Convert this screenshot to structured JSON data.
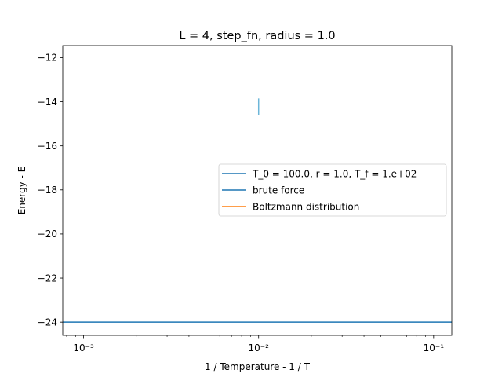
{
  "chart_data": {
    "type": "line",
    "title": "L = 4, step_fn, radius = 1.0",
    "xlabel": "1 / Temperature - 1 / T",
    "ylabel": "Energy - E",
    "xscale": "log",
    "xlim": [
      0.00076,
      0.127
    ],
    "ylim": [
      -24.6,
      -11.45
    ],
    "yticks": [
      -12,
      -14,
      -16,
      -18,
      -20,
      -22,
      -24
    ],
    "ytick_labels": [
      "−12",
      "−14",
      "−16",
      "−18",
      "−20",
      "−22",
      "−24"
    ],
    "xticks": [
      0.001,
      0.01,
      0.1
    ],
    "xtick_labels": [
      "10⁻³",
      "10⁻²",
      "10⁻¹"
    ],
    "grid": false,
    "legend_position": "center-right",
    "series": [
      {
        "name": "T_0 = 100.0, r = 1.0, T_f = 1.e+02",
        "color": "#1f77b4",
        "kind": "errorbar",
        "x": [
          0.01
        ],
        "y": [
          -14.2
        ],
        "yerr_low": [
          -14.62
        ],
        "yerr_high": [
          -13.85
        ]
      },
      {
        "name": "brute force",
        "color": "#1f77b4",
        "kind": "hline",
        "y": -24
      },
      {
        "name": "Boltzmann distribution",
        "color": "#ff7f0e",
        "kind": "line",
        "x": [],
        "y": []
      }
    ]
  }
}
